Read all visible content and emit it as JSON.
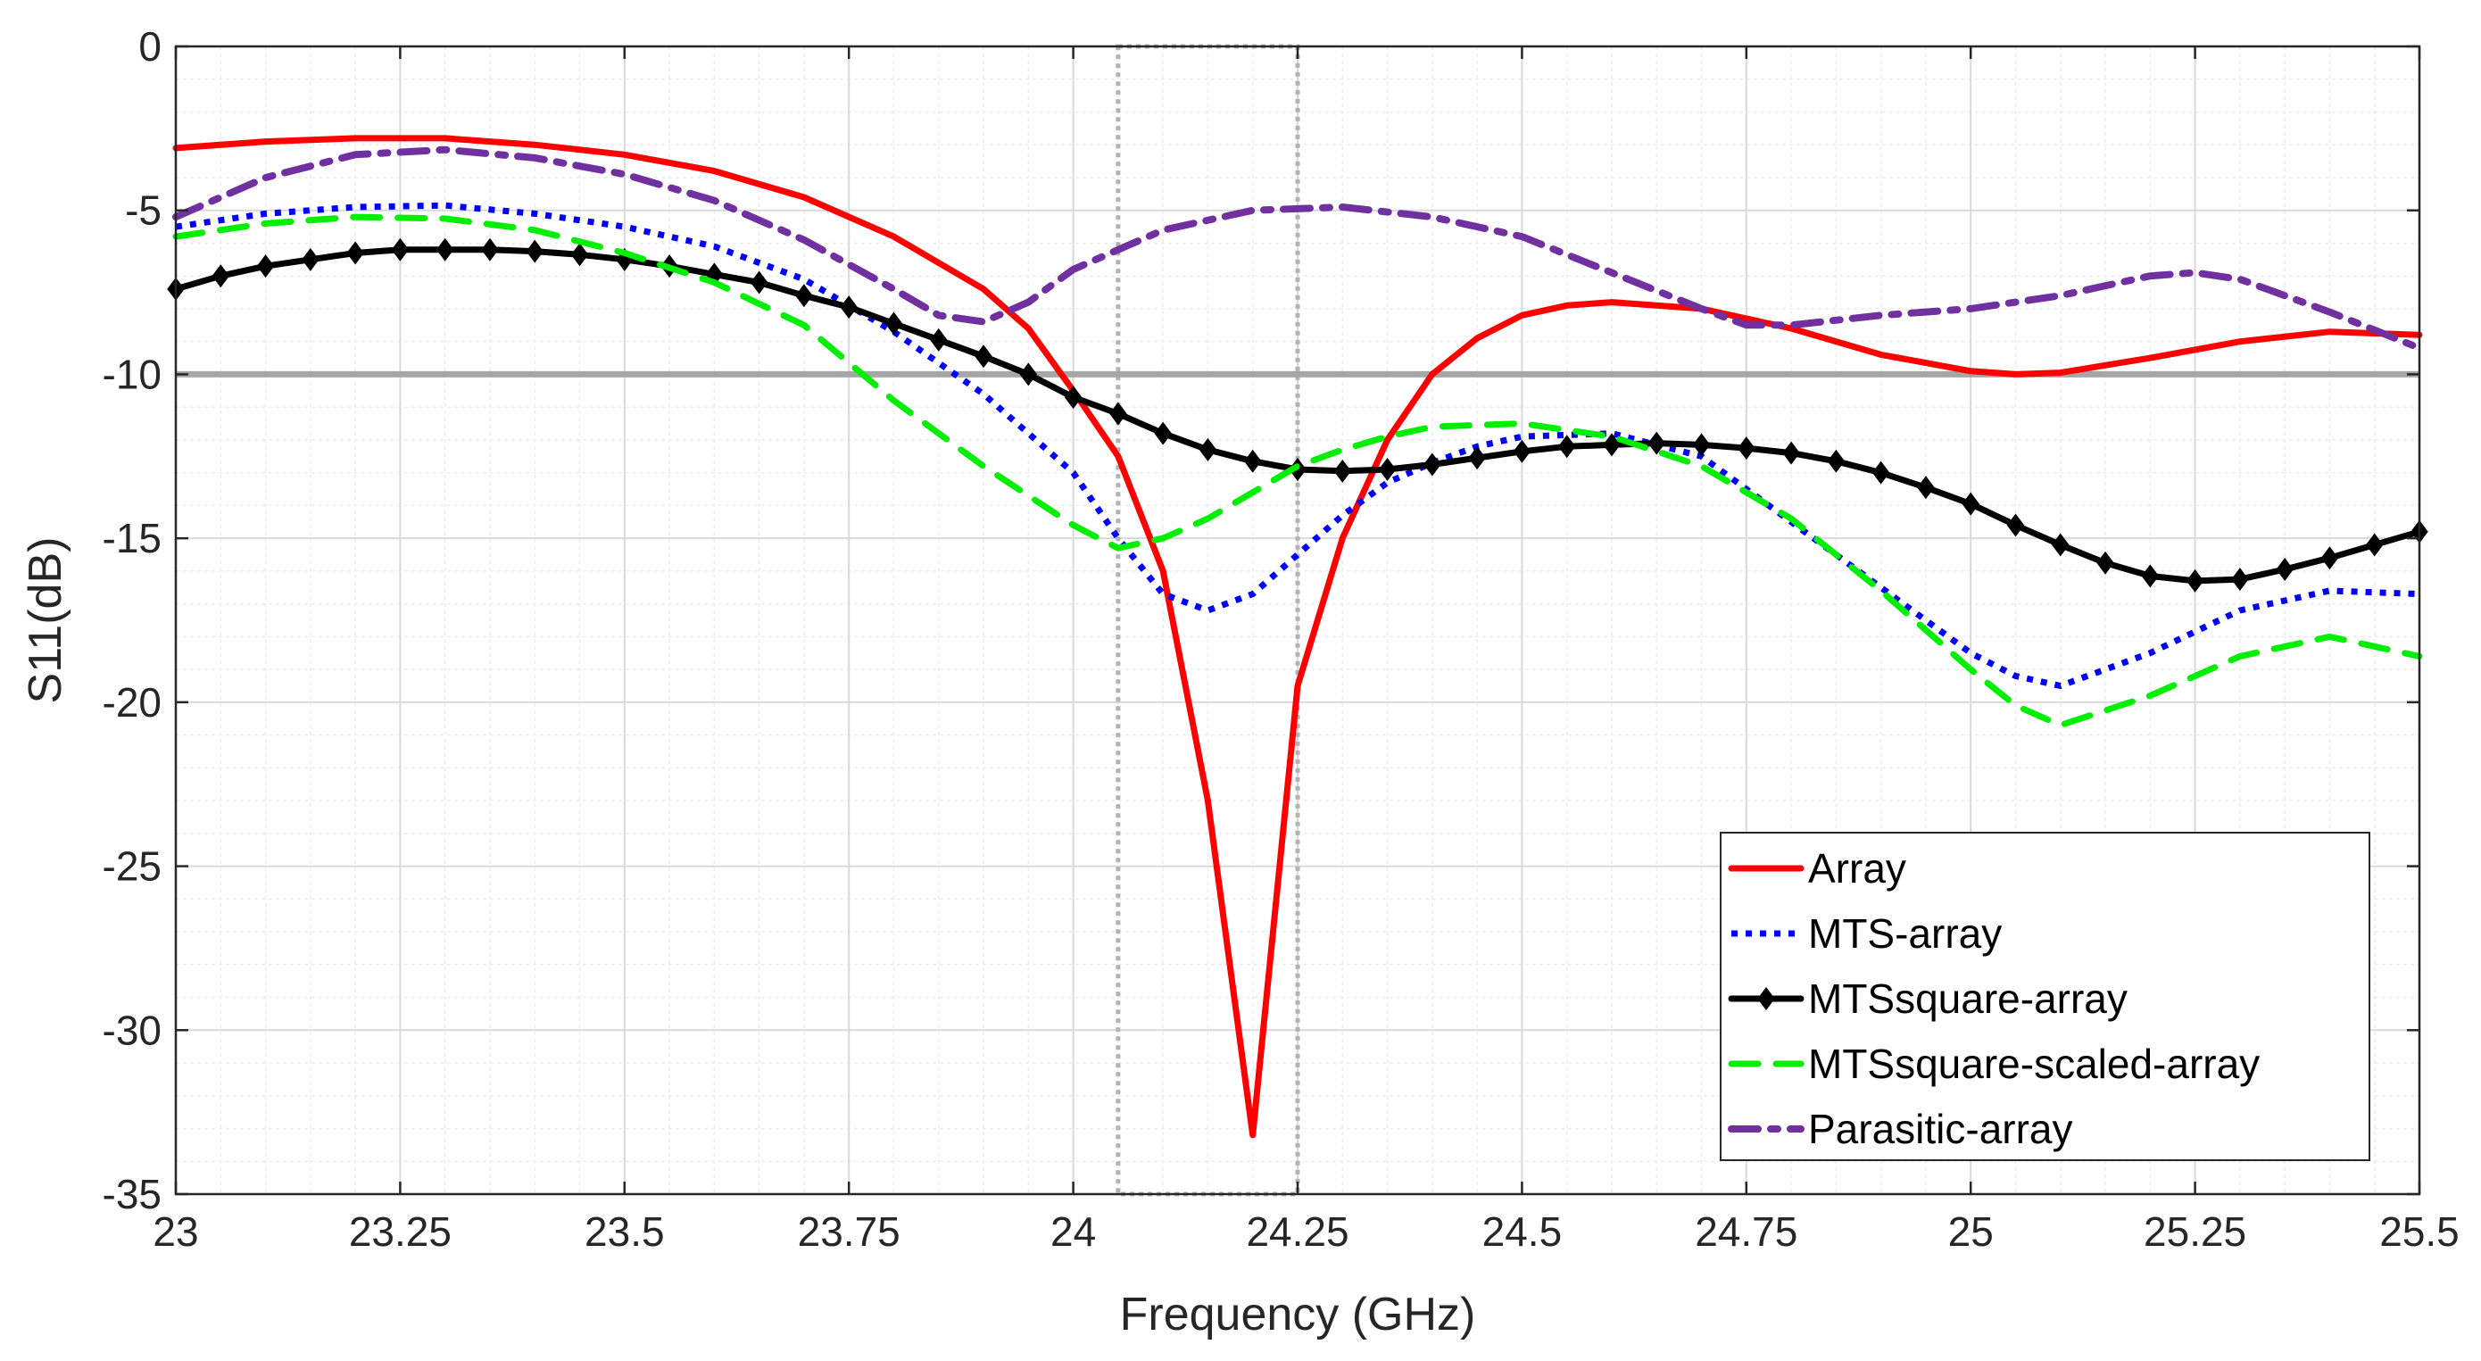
{
  "chart_data": {
    "type": "line",
    "title": "",
    "xlabel": "Frequency (GHz)",
    "ylabel": "S11(dB)",
    "xlim": [
      23,
      25.5
    ],
    "ylim": [
      -35,
      0
    ],
    "grid": true,
    "minor_grid": true,
    "legend_position": "bottom-right",
    "x_ticks": [
      23,
      23.25,
      23.5,
      23.75,
      24,
      24.25,
      24.5,
      24.75,
      25,
      25.25,
      25.5
    ],
    "x_tick_labels": [
      "23",
      "23.25",
      "23.5",
      "23.75",
      "24",
      "24.25",
      "24.5",
      "24.75",
      "25",
      "25.25",
      "25.5"
    ],
    "y_ticks": [
      0,
      -5,
      -10,
      -15,
      -20,
      -25,
      -30,
      -35
    ],
    "y_tick_labels": [
      "0",
      "-5",
      "-10",
      "-15",
      "-20",
      "-25",
      "-30",
      "-35"
    ],
    "reference_line": {
      "y": -10,
      "color": "#a6a6a6"
    },
    "highlight_band": {
      "x_start": 24.05,
      "x_end": 24.25,
      "y_start": -35,
      "y_end": 0,
      "color": "#b3b3b3"
    },
    "series": [
      {
        "name": "Array",
        "color": "#ff0000",
        "style": "solid",
        "points": [
          [
            23,
            -3.1
          ],
          [
            23.1,
            -2.9
          ],
          [
            23.2,
            -2.8
          ],
          [
            23.3,
            -2.8
          ],
          [
            23.4,
            -3.0
          ],
          [
            23.5,
            -3.3
          ],
          [
            23.6,
            -3.8
          ],
          [
            23.7,
            -4.6
          ],
          [
            23.8,
            -5.8
          ],
          [
            23.9,
            -7.4
          ],
          [
            23.95,
            -8.6
          ],
          [
            24.0,
            -10.5
          ],
          [
            24.05,
            -12.5
          ],
          [
            24.1,
            -16.0
          ],
          [
            24.15,
            -23.0
          ],
          [
            24.2,
            -33.2
          ],
          [
            24.25,
            -19.5
          ],
          [
            24.3,
            -15.0
          ],
          [
            24.35,
            -12.0
          ],
          [
            24.4,
            -10.0
          ],
          [
            24.45,
            -8.9
          ],
          [
            24.5,
            -8.2
          ],
          [
            24.55,
            -7.9
          ],
          [
            24.6,
            -7.8
          ],
          [
            24.7,
            -8.0
          ],
          [
            24.8,
            -8.6
          ],
          [
            24.9,
            -9.4
          ],
          [
            25.0,
            -9.9
          ],
          [
            25.05,
            -10.0
          ],
          [
            25.1,
            -9.95
          ],
          [
            25.2,
            -9.5
          ],
          [
            25.3,
            -9.0
          ],
          [
            25.4,
            -8.7
          ],
          [
            25.5,
            -8.8
          ]
        ]
      },
      {
        "name": "MTS-array",
        "color": "#0000ff",
        "style": "dotted",
        "points": [
          [
            23,
            -5.5
          ],
          [
            23.1,
            -5.1
          ],
          [
            23.2,
            -4.9
          ],
          [
            23.3,
            -4.85
          ],
          [
            23.4,
            -5.1
          ],
          [
            23.5,
            -5.5
          ],
          [
            23.6,
            -6.1
          ],
          [
            23.7,
            -7.1
          ],
          [
            23.8,
            -8.7
          ],
          [
            23.9,
            -10.6
          ],
          [
            24.0,
            -13.0
          ],
          [
            24.05,
            -15.0
          ],
          [
            24.1,
            -16.7
          ],
          [
            24.15,
            -17.2
          ],
          [
            24.2,
            -16.7
          ],
          [
            24.25,
            -15.5
          ],
          [
            24.3,
            -14.3
          ],
          [
            24.35,
            -13.3
          ],
          [
            24.4,
            -12.7
          ],
          [
            24.45,
            -12.2
          ],
          [
            24.5,
            -11.9
          ],
          [
            24.6,
            -11.8
          ],
          [
            24.7,
            -12.5
          ],
          [
            24.8,
            -14.5
          ],
          [
            24.9,
            -16.5
          ],
          [
            25.0,
            -18.5
          ],
          [
            25.05,
            -19.2
          ],
          [
            25.1,
            -19.5
          ],
          [
            25.2,
            -18.5
          ],
          [
            25.3,
            -17.2
          ],
          [
            25.4,
            -16.6
          ],
          [
            25.5,
            -16.7
          ]
        ]
      },
      {
        "name": "MTSsquare-array",
        "color": "#000000",
        "style": "solid-diamond",
        "points": [
          [
            23,
            -7.4
          ],
          [
            23.05,
            -7.0
          ],
          [
            23.1,
            -6.7
          ],
          [
            23.15,
            -6.5
          ],
          [
            23.2,
            -6.3
          ],
          [
            23.25,
            -6.2
          ],
          [
            23.3,
            -6.2
          ],
          [
            23.35,
            -6.2
          ],
          [
            23.4,
            -6.25
          ],
          [
            23.45,
            -6.35
          ],
          [
            23.5,
            -6.5
          ],
          [
            23.55,
            -6.7
          ],
          [
            23.6,
            -6.95
          ],
          [
            23.65,
            -7.2
          ],
          [
            23.7,
            -7.6
          ],
          [
            23.75,
            -7.95
          ],
          [
            23.8,
            -8.45
          ],
          [
            23.85,
            -8.95
          ],
          [
            23.9,
            -9.45
          ],
          [
            23.95,
            -10.0
          ],
          [
            24.0,
            -10.7
          ],
          [
            24.05,
            -11.2
          ],
          [
            24.1,
            -11.8
          ],
          [
            24.15,
            -12.3
          ],
          [
            24.2,
            -12.65
          ],
          [
            24.25,
            -12.9
          ],
          [
            24.3,
            -12.95
          ],
          [
            24.35,
            -12.9
          ],
          [
            24.4,
            -12.75
          ],
          [
            24.45,
            -12.55
          ],
          [
            24.5,
            -12.35
          ],
          [
            24.55,
            -12.2
          ],
          [
            24.6,
            -12.15
          ],
          [
            24.65,
            -12.1
          ],
          [
            24.7,
            -12.15
          ],
          [
            24.75,
            -12.25
          ],
          [
            24.8,
            -12.4
          ],
          [
            24.85,
            -12.65
          ],
          [
            24.9,
            -13.0
          ],
          [
            24.95,
            -13.45
          ],
          [
            25.0,
            -13.95
          ],
          [
            25.05,
            -14.6
          ],
          [
            25.1,
            -15.2
          ],
          [
            25.15,
            -15.75
          ],
          [
            25.2,
            -16.15
          ],
          [
            25.25,
            -16.3
          ],
          [
            25.3,
            -16.25
          ],
          [
            25.35,
            -15.95
          ],
          [
            25.4,
            -15.6
          ],
          [
            25.45,
            -15.2
          ],
          [
            25.5,
            -14.8
          ]
        ]
      },
      {
        "name": "MTSsquare-scaled-array",
        "color": "#00ee00",
        "style": "dashed",
        "points": [
          [
            23,
            -5.8
          ],
          [
            23.1,
            -5.4
          ],
          [
            23.2,
            -5.2
          ],
          [
            23.3,
            -5.25
          ],
          [
            23.4,
            -5.6
          ],
          [
            23.5,
            -6.3
          ],
          [
            23.6,
            -7.2
          ],
          [
            23.7,
            -8.5
          ],
          [
            23.8,
            -10.8
          ],
          [
            23.9,
            -12.8
          ],
          [
            24.0,
            -14.6
          ],
          [
            24.05,
            -15.3
          ],
          [
            24.1,
            -15.0
          ],
          [
            24.15,
            -14.4
          ],
          [
            24.2,
            -13.6
          ],
          [
            24.25,
            -12.8
          ],
          [
            24.3,
            -12.3
          ],
          [
            24.35,
            -11.9
          ],
          [
            24.4,
            -11.6
          ],
          [
            24.5,
            -11.5
          ],
          [
            24.6,
            -11.9
          ],
          [
            24.7,
            -12.8
          ],
          [
            24.8,
            -14.4
          ],
          [
            24.9,
            -16.6
          ],
          [
            25.0,
            -19.0
          ],
          [
            25.05,
            -20.1
          ],
          [
            25.1,
            -20.7
          ],
          [
            25.2,
            -19.8
          ],
          [
            25.3,
            -18.6
          ],
          [
            25.4,
            -18.0
          ],
          [
            25.5,
            -18.6
          ]
        ]
      },
      {
        "name": "Parasitic-array",
        "color": "#7030a0",
        "style": "dashdot",
        "points": [
          [
            23,
            -5.2
          ],
          [
            23.1,
            -4.0
          ],
          [
            23.2,
            -3.3
          ],
          [
            23.3,
            -3.15
          ],
          [
            23.4,
            -3.4
          ],
          [
            23.5,
            -3.9
          ],
          [
            23.6,
            -4.7
          ],
          [
            23.7,
            -5.9
          ],
          [
            23.8,
            -7.4
          ],
          [
            23.85,
            -8.2
          ],
          [
            23.9,
            -8.4
          ],
          [
            23.95,
            -7.8
          ],
          [
            24.0,
            -6.8
          ],
          [
            24.1,
            -5.6
          ],
          [
            24.2,
            -5.0
          ],
          [
            24.3,
            -4.9
          ],
          [
            24.4,
            -5.2
          ],
          [
            24.5,
            -5.8
          ],
          [
            24.6,
            -6.9
          ],
          [
            24.7,
            -8.0
          ],
          [
            24.75,
            -8.5
          ],
          [
            24.8,
            -8.5
          ],
          [
            24.9,
            -8.2
          ],
          [
            25.0,
            -8.0
          ],
          [
            25.1,
            -7.6
          ],
          [
            25.2,
            -7.0
          ],
          [
            25.25,
            -6.9
          ],
          [
            25.3,
            -7.1
          ],
          [
            25.4,
            -8.1
          ],
          [
            25.5,
            -9.2
          ]
        ]
      }
    ]
  }
}
